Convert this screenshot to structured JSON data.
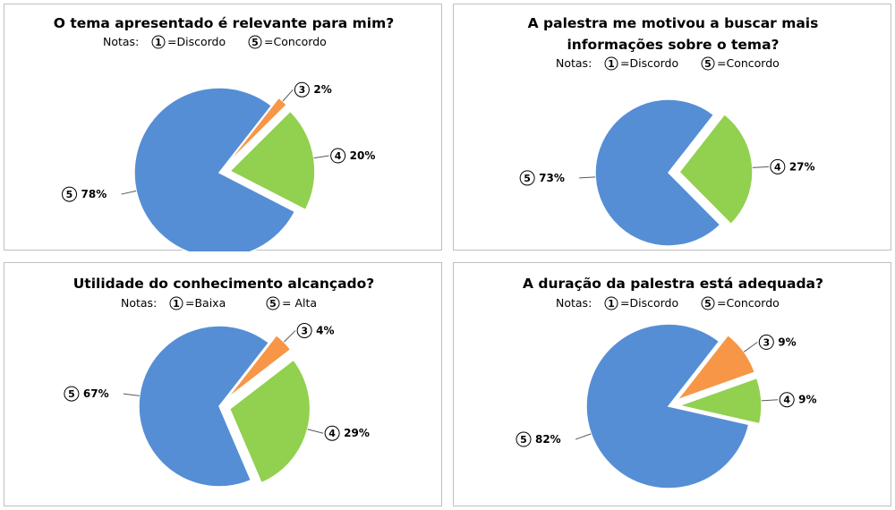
{
  "chart_data": [
    {
      "type": "pie",
      "title_lines": [
        "O tema apresentado é relevante para mim?"
      ],
      "notes": {
        "prefix": "Notas:",
        "low_num": "1",
        "low_label": "=Discordo",
        "high_num": "5",
        "high_label": "=Concordo"
      },
      "slices": [
        {
          "score": "3",
          "label": "2%",
          "value": 2,
          "color": "#f79646",
          "exploded": true
        },
        {
          "score": "4",
          "label": "20%",
          "value": 20,
          "color": "#92d050",
          "exploded": true
        },
        {
          "score": "5",
          "label": "78%",
          "value": 78,
          "color": "#558ed5",
          "exploded": false
        }
      ]
    },
    {
      "type": "pie",
      "title_lines": [
        "A palestra me motivou a buscar mais",
        "informações sobre o tema?"
      ],
      "notes": {
        "prefix": "Notas:",
        "low_num": "1",
        "low_label": "=Discordo",
        "high_num": "5",
        "high_label": "=Concordo"
      },
      "slices": [
        {
          "score": "4",
          "label": "27%",
          "value": 27,
          "color": "#92d050",
          "exploded": true
        },
        {
          "score": "5",
          "label": "73%",
          "value": 73,
          "color": "#558ed5",
          "exploded": false
        }
      ]
    },
    {
      "type": "pie",
      "title_lines": [
        "Utilidade do conhecimento alcançado?"
      ],
      "notes": {
        "prefix": "Notas:",
        "low_num": "1",
        "low_label": "=Baixa",
        "high_num": "5",
        "high_label": "= Alta"
      },
      "slices": [
        {
          "score": "3",
          "label": "4%",
          "value": 4,
          "color": "#f79646",
          "exploded": true
        },
        {
          "score": "4",
          "label": "29%",
          "value": 29,
          "color": "#92d050",
          "exploded": true
        },
        {
          "score": "5",
          "label": "67%",
          "value": 67,
          "color": "#558ed5",
          "exploded": false
        }
      ]
    },
    {
      "type": "pie",
      "title_lines": [
        "A duração da palestra está adequada?"
      ],
      "notes": {
        "prefix": "Notas:",
        "low_num": "1",
        "low_label": "=Discordo",
        "high_num": "5",
        "high_label": "=Concordo"
      },
      "slices": [
        {
          "score": "3",
          "label": "9%",
          "value": 9,
          "color": "#f79646",
          "exploded": true
        },
        {
          "score": "4",
          "label": "9%",
          "value": 9,
          "color": "#92d050",
          "exploded": true
        },
        {
          "score": "5",
          "label": "82%",
          "value": 82,
          "color": "#558ed5",
          "exploded": false
        }
      ]
    }
  ]
}
